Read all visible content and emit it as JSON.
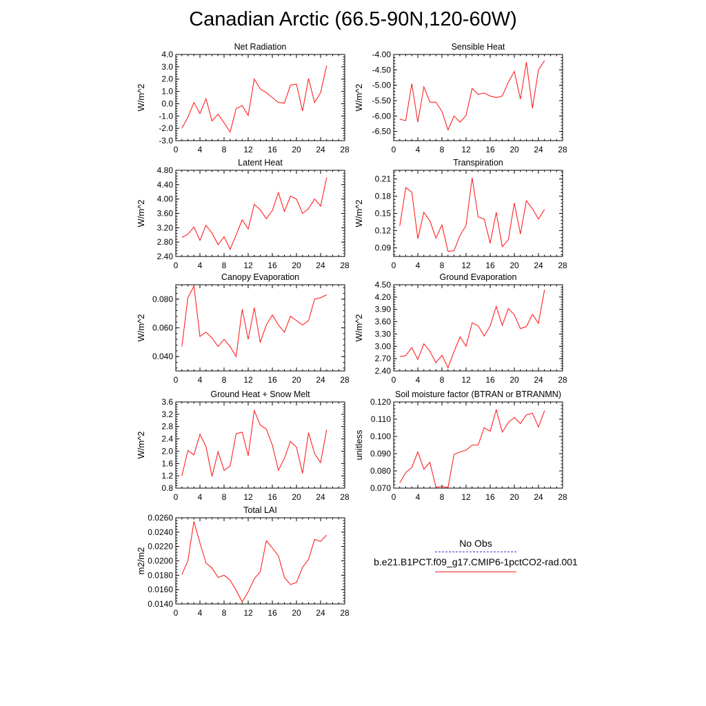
{
  "page_title": "Canadian Arctic (66.5-90N,120-60W)",
  "legend": {
    "obs_label": "No Obs",
    "obs_color": "#3a3acc",
    "model_label": "b.e21.B1PCT.f09_g17.CMIP6-1pctCO2-rad.001",
    "model_color": "#ff2020"
  },
  "chart_data": [
    {
      "type": "line",
      "title": "Net Radiation",
      "ylabel": "W/m^2",
      "xlim": [
        0,
        28
      ],
      "xticks": [
        "0",
        "4",
        "8",
        "12",
        "16",
        "20",
        "24",
        "28"
      ],
      "ylim": [
        -3.0,
        4.0
      ],
      "yticks": [
        "4.0",
        "3.0",
        "2.0",
        "1.0",
        "0.0",
        "-1.0",
        "-2.0",
        "-3.0"
      ],
      "x": [
        1,
        2,
        3,
        4,
        5,
        6,
        7,
        8,
        9,
        10,
        11,
        12,
        13,
        14,
        15,
        16,
        17,
        18,
        19,
        20,
        21,
        22,
        23,
        24,
        25
      ],
      "series": [
        {
          "color": "#ff2020",
          "values": [
            -2.0,
            -1.1,
            0.1,
            -0.8,
            0.4,
            -1.4,
            -0.85,
            -1.55,
            -2.3,
            -0.4,
            -0.15,
            -0.95,
            2.0,
            1.2,
            0.9,
            0.5,
            0.1,
            0.05,
            1.5,
            1.6,
            -0.6,
            2.05,
            0.1,
            0.9,
            3.1
          ]
        }
      ]
    },
    {
      "type": "line",
      "title": "Sensible Heat",
      "ylabel": "W/m^2",
      "xlim": [
        0,
        28
      ],
      "xticks": [
        "0",
        "4",
        "8",
        "12",
        "16",
        "20",
        "24",
        "28"
      ],
      "ylim": [
        -6.8,
        -4.0
      ],
      "yticks": [
        "-4.00",
        "-4.50",
        "-5.00",
        "-5.50",
        "-6.00",
        "-6.50"
      ],
      "x": [
        1,
        2,
        3,
        4,
        5,
        6,
        7,
        8,
        9,
        10,
        11,
        12,
        13,
        14,
        15,
        16,
        17,
        18,
        19,
        20,
        21,
        22,
        23,
        24,
        25
      ],
      "series": [
        {
          "color": "#ff2020",
          "values": [
            -6.1,
            -6.15,
            -4.95,
            -6.2,
            -5.05,
            -5.55,
            -5.55,
            -5.85,
            -6.45,
            -6.0,
            -6.2,
            -5.98,
            -5.1,
            -5.3,
            -5.25,
            -5.35,
            -5.4,
            -5.35,
            -4.9,
            -4.55,
            -5.45,
            -4.25,
            -5.75,
            -4.5,
            -4.2
          ]
        }
      ]
    },
    {
      "type": "line",
      "title": "Latent Heat",
      "ylabel": "W/m^2",
      "xlim": [
        0,
        28
      ],
      "xticks": [
        "0",
        "4",
        "8",
        "12",
        "16",
        "20",
        "24",
        "28"
      ],
      "ylim": [
        2.4,
        4.8
      ],
      "yticks": [
        "4.80",
        "4.40",
        "4.00",
        "3.60",
        "3.20",
        "2.80",
        "2.40"
      ],
      "x": [
        1,
        2,
        3,
        4,
        5,
        6,
        7,
        8,
        9,
        10,
        11,
        12,
        13,
        14,
        15,
        16,
        17,
        18,
        19,
        20,
        21,
        22,
        23,
        24,
        25
      ],
      "series": [
        {
          "color": "#ff2020",
          "values": [
            2.93,
            3.02,
            3.22,
            2.85,
            3.27,
            3.05,
            2.73,
            2.95,
            2.6,
            3.0,
            3.42,
            3.17,
            3.85,
            3.7,
            3.45,
            3.68,
            4.18,
            3.65,
            4.08,
            4.0,
            3.6,
            3.73,
            4.0,
            3.8,
            4.6
          ]
        }
      ]
    },
    {
      "type": "line",
      "title": "Transpiration",
      "ylabel": "W/m^2",
      "xlim": [
        0,
        28
      ],
      "xticks": [
        "0",
        "4",
        "8",
        "12",
        "16",
        "20",
        "24",
        "28"
      ],
      "ylim": [
        0.075,
        0.225
      ],
      "yticks": [
        "0.21",
        "0.18",
        "0.15",
        "0.12",
        "0.09"
      ],
      "x": [
        1,
        2,
        3,
        4,
        5,
        6,
        7,
        8,
        9,
        10,
        11,
        12,
        13,
        14,
        15,
        16,
        17,
        18,
        19,
        20,
        21,
        22,
        23,
        24,
        25
      ],
      "series": [
        {
          "color": "#ff2020",
          "values": [
            0.128,
            0.195,
            0.187,
            0.106,
            0.152,
            0.137,
            0.107,
            0.13,
            0.084,
            0.085,
            0.112,
            0.129,
            0.212,
            0.144,
            0.14,
            0.098,
            0.152,
            0.092,
            0.104,
            0.168,
            0.114,
            0.172,
            0.158,
            0.14,
            0.157
          ]
        }
      ]
    },
    {
      "type": "line",
      "title": "Canopy Evaporation",
      "ylabel": "W/m^2",
      "xlim": [
        0,
        28
      ],
      "xticks": [
        "0",
        "4",
        "8",
        "12",
        "16",
        "20",
        "24",
        "28"
      ],
      "ylim": [
        0.03,
        0.09
      ],
      "yticks": [
        "0.080",
        "0.060",
        "0.040"
      ],
      "x": [
        1,
        2,
        3,
        4,
        5,
        6,
        7,
        8,
        9,
        10,
        11,
        12,
        13,
        14,
        15,
        16,
        17,
        18,
        19,
        20,
        21,
        22,
        23,
        24,
        25
      ],
      "series": [
        {
          "color": "#ff2020",
          "values": [
            0.047,
            0.081,
            0.089,
            0.054,
            0.057,
            0.053,
            0.047,
            0.052,
            0.047,
            0.04,
            0.073,
            0.052,
            0.074,
            0.05,
            0.062,
            0.069,
            0.062,
            0.057,
            0.068,
            0.065,
            0.062,
            0.065,
            0.08,
            0.081,
            0.083
          ]
        }
      ]
    },
    {
      "type": "line",
      "title": "Ground Evaporation",
      "ylabel": "W/m^2",
      "xlim": [
        0,
        28
      ],
      "xticks": [
        "0",
        "4",
        "8",
        "12",
        "16",
        "20",
        "24",
        "28"
      ],
      "ylim": [
        2.4,
        4.5
      ],
      "yticks": [
        "4.50",
        "4.20",
        "3.90",
        "3.60",
        "3.30",
        "3.00",
        "2.70",
        "2.40"
      ],
      "x": [
        1,
        2,
        3,
        4,
        5,
        6,
        7,
        8,
        9,
        10,
        11,
        12,
        13,
        14,
        15,
        16,
        17,
        18,
        19,
        20,
        21,
        22,
        23,
        24,
        25
      ],
      "series": [
        {
          "color": "#ff2020",
          "values": [
            2.75,
            2.77,
            2.97,
            2.68,
            3.06,
            2.88,
            2.6,
            2.78,
            2.48,
            2.87,
            3.23,
            3.0,
            3.57,
            3.5,
            3.25,
            3.5,
            3.97,
            3.51,
            3.92,
            3.77,
            3.43,
            3.48,
            3.78,
            3.56,
            4.38
          ]
        }
      ]
    },
    {
      "type": "line",
      "title": "Ground Heat + Snow Melt",
      "ylabel": "W/m^2",
      "xlim": [
        0,
        28
      ],
      "xticks": [
        "0",
        "4",
        "8",
        "12",
        "16",
        "20",
        "24",
        "28"
      ],
      "ylim": [
        0.8,
        3.6
      ],
      "yticks": [
        "3.6",
        "3.2",
        "2.8",
        "2.4",
        "2.0",
        "1.6",
        "1.2",
        "0.8"
      ],
      "x": [
        1,
        2,
        3,
        4,
        5,
        6,
        7,
        8,
        9,
        10,
        11,
        12,
        13,
        14,
        15,
        16,
        17,
        18,
        19,
        20,
        21,
        22,
        23,
        24,
        25
      ],
      "series": [
        {
          "color": "#ff2020",
          "values": [
            1.2,
            2.02,
            1.88,
            2.55,
            2.15,
            1.18,
            1.98,
            1.38,
            1.52,
            2.57,
            2.62,
            1.85,
            3.32,
            2.85,
            2.72,
            2.2,
            1.38,
            1.77,
            2.32,
            2.13,
            1.28,
            2.6,
            1.92,
            1.63,
            2.7
          ]
        }
      ]
    },
    {
      "type": "line",
      "title": "Soil moisture factor (BTRAN or BTRANMN)",
      "ylabel": "unitless",
      "xlim": [
        0,
        28
      ],
      "xticks": [
        "0",
        "4",
        "8",
        "12",
        "16",
        "20",
        "24",
        "28"
      ],
      "ylim": [
        0.07,
        0.12
      ],
      "yticks": [
        "0.120",
        "0.110",
        "0.100",
        "0.090",
        "0.080",
        "0.070"
      ],
      "x": [
        1,
        2,
        3,
        4,
        5,
        6,
        7,
        8,
        9,
        10,
        11,
        12,
        13,
        14,
        15,
        16,
        17,
        18,
        19,
        20,
        21,
        22,
        23,
        24,
        25
      ],
      "series": [
        {
          "color": "#ff2020",
          "values": [
            0.073,
            0.079,
            0.082,
            0.091,
            0.081,
            0.085,
            0.0705,
            0.071,
            0.0703,
            0.0895,
            0.091,
            0.092,
            0.095,
            0.095,
            0.105,
            0.103,
            0.1155,
            0.1025,
            0.108,
            0.111,
            0.1075,
            0.1125,
            0.1135,
            0.1055,
            0.115
          ]
        }
      ]
    },
    {
      "type": "line",
      "title": "Total LAI",
      "ylabel": "m2/m2",
      "xlim": [
        0,
        28
      ],
      "xticks": [
        "0",
        "4",
        "8",
        "12",
        "16",
        "20",
        "24",
        "28"
      ],
      "ylim": [
        0.014,
        0.026
      ],
      "yticks": [
        "0.0260",
        "0.0240",
        "0.0220",
        "0.0200",
        "0.0180",
        "0.0160",
        "0.0140"
      ],
      "x": [
        1,
        2,
        3,
        4,
        5,
        6,
        7,
        8,
        9,
        10,
        11,
        12,
        13,
        14,
        15,
        16,
        17,
        18,
        19,
        20,
        21,
        22,
        23,
        24,
        25
      ],
      "series": [
        {
          "color": "#ff2020",
          "values": [
            0.0181,
            0.02,
            0.0255,
            0.0225,
            0.0197,
            0.019,
            0.0177,
            0.018,
            0.0173,
            0.0159,
            0.0143,
            0.0157,
            0.0175,
            0.0185,
            0.0228,
            0.0218,
            0.0207,
            0.0177,
            0.0167,
            0.017,
            0.0191,
            0.0202,
            0.023,
            0.0227,
            0.0236
          ]
        }
      ]
    }
  ]
}
